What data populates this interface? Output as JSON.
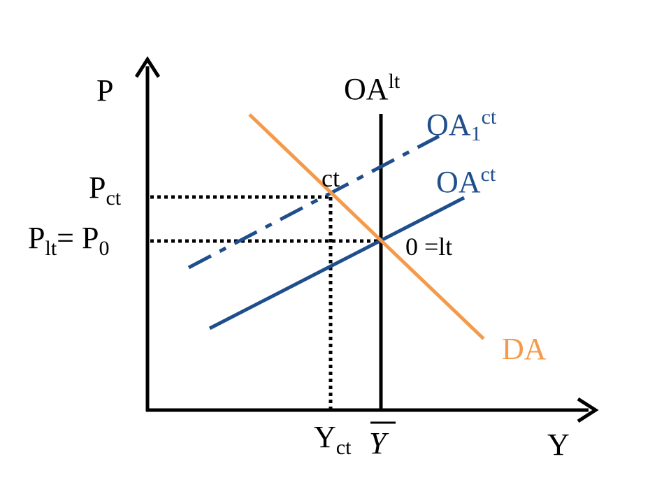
{
  "axes": {
    "y_label": "P",
    "x_label": "Y"
  },
  "price_labels": {
    "p_ct": {
      "main": "P",
      "sub": "ct"
    },
    "p_lt": {
      "main": "P",
      "sub": "lt",
      "eq": "= P",
      "sub2": "0"
    }
  },
  "quantity_labels": {
    "y_ct": {
      "main": "Y",
      "sub": "ct"
    },
    "y_bar": "Y"
  },
  "curves": {
    "oa_lt": {
      "main": "OA",
      "sup": "lt",
      "color": "#000000"
    },
    "oa1_ct": {
      "main": "OA",
      "sub": "1",
      "sup": "ct",
      "color": "#1f4e8c"
    },
    "oa_ct": {
      "main": "OA",
      "sup": "ct",
      "color": "#1f4e8c"
    },
    "da": {
      "label": "DA",
      "color": "#f59a4a"
    }
  },
  "points": {
    "ct": "ct",
    "lt": "0 =lt"
  }
}
